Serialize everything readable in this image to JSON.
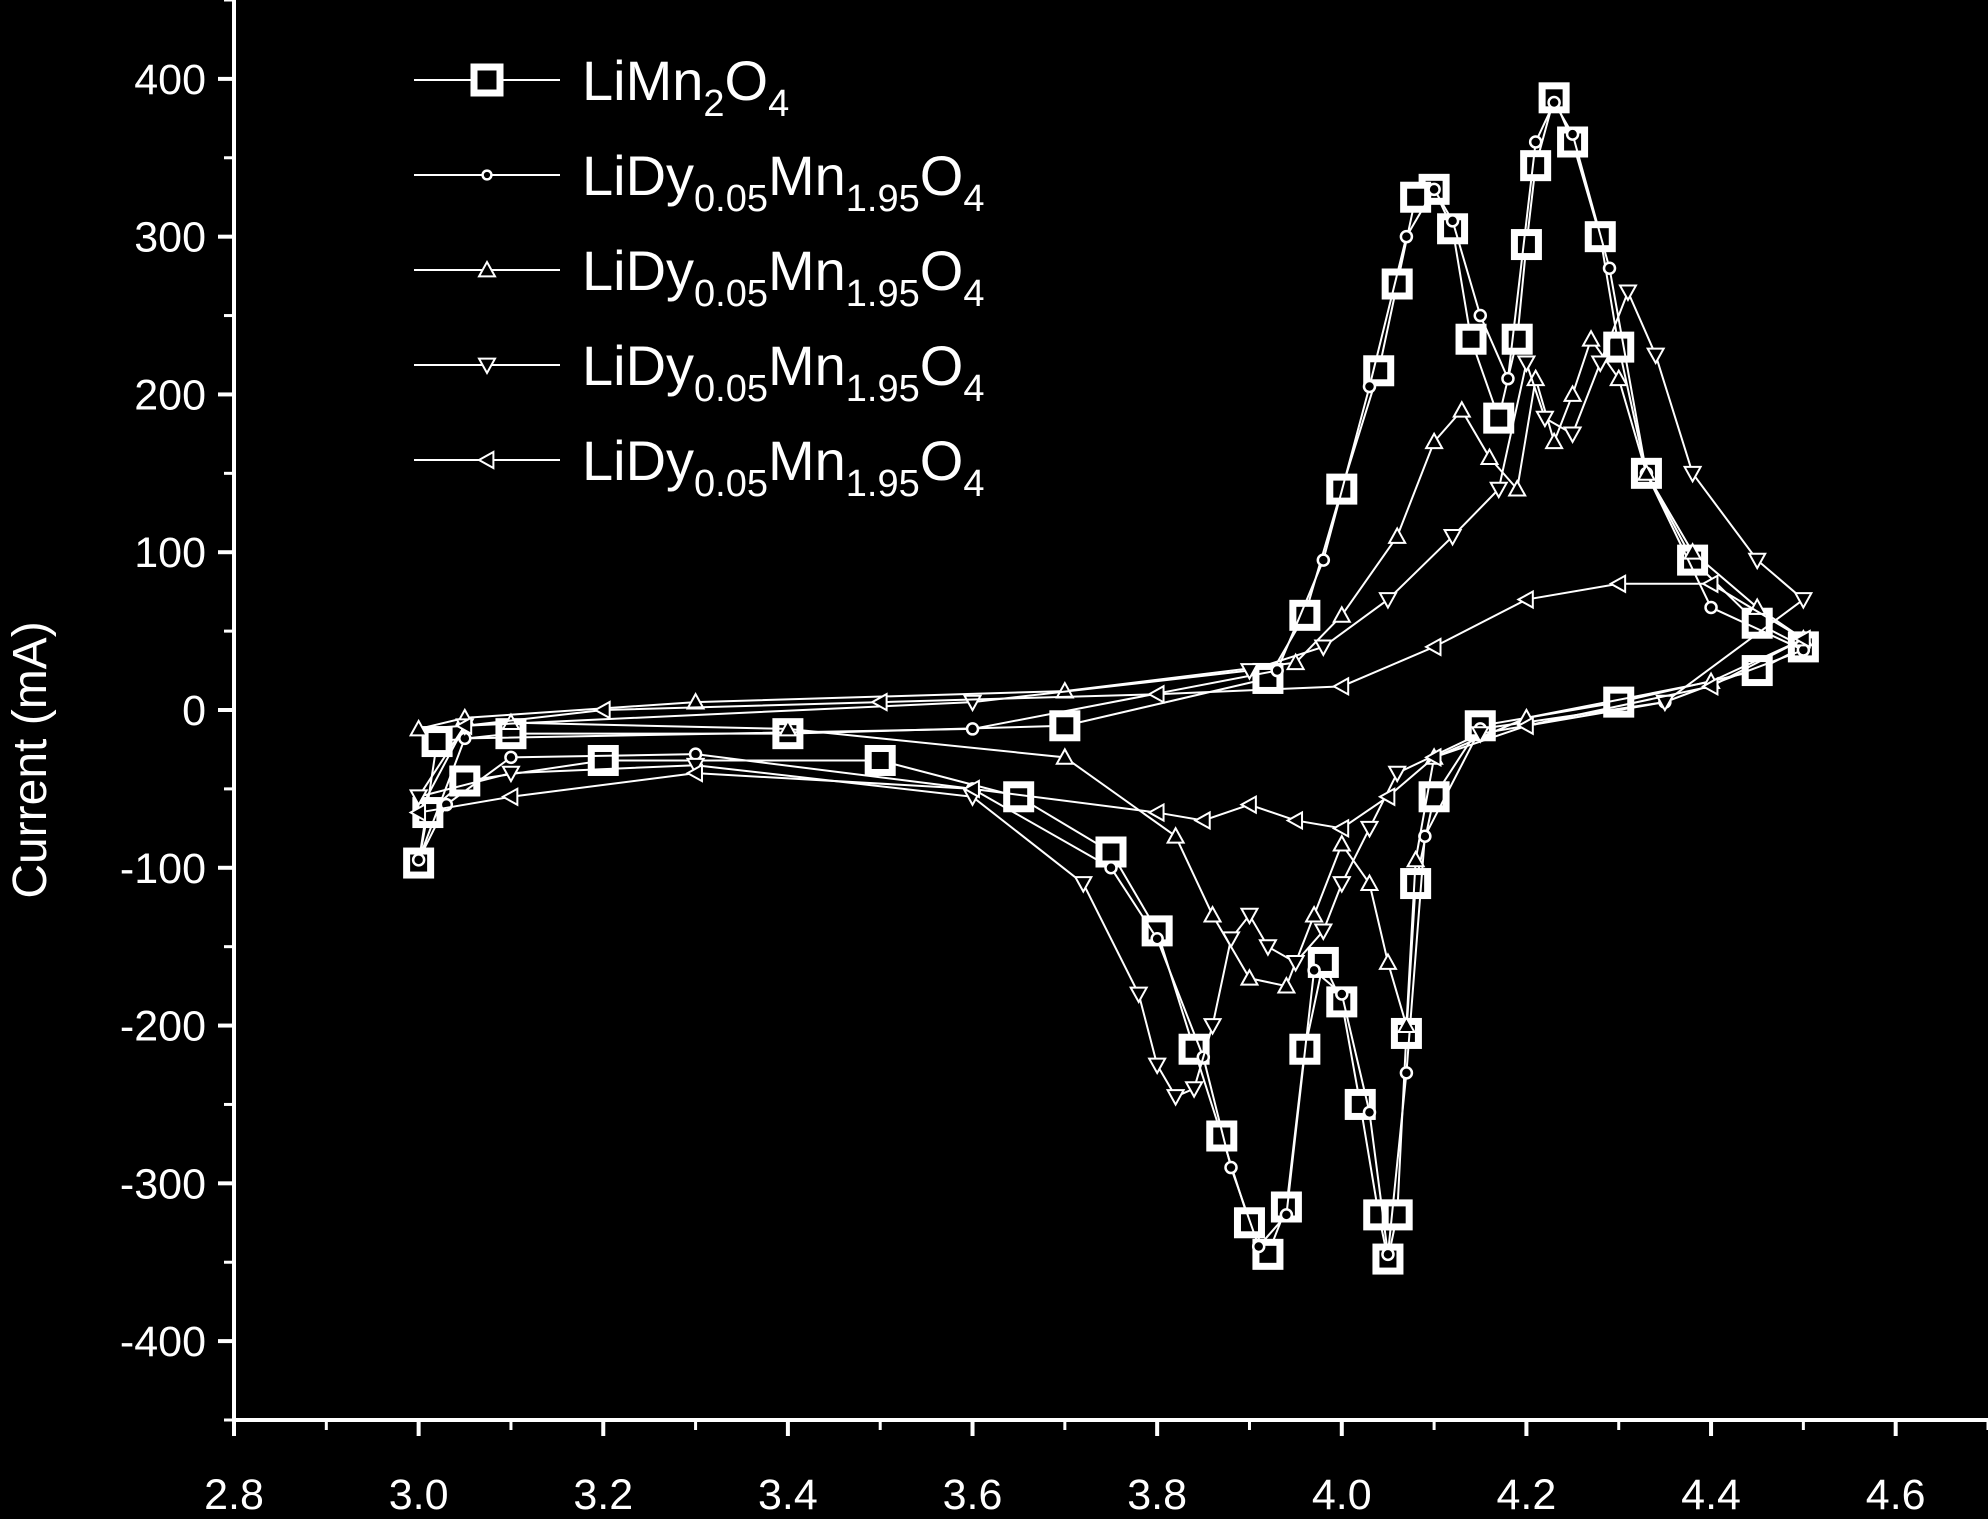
{
  "chart_data": {
    "type": "line",
    "title": "",
    "xlabel": "",
    "ylabel": "Current (mA)",
    "xlim": [
      2.8,
      4.7
    ],
    "ylim": [
      -450,
      450
    ],
    "x_ticks": [
      2.8,
      3.0,
      3.2,
      3.4,
      3.6,
      3.8,
      4.0,
      4.2,
      4.4,
      4.6
    ],
    "x_tick_labels": [
      "2.8",
      "3.0",
      "3.2",
      "3.4",
      "3.6",
      "3.8",
      "4.0",
      "4.2",
      "4.4",
      "4.6"
    ],
    "y_ticks": [
      -400,
      -300,
      -200,
      -100,
      0,
      100,
      200,
      300,
      400
    ],
    "y_tick_labels": [
      "-400",
      "-300",
      "-200",
      "-100",
      "0",
      "100",
      "200",
      "300",
      "400"
    ],
    "legend_position": "top-left",
    "series": [
      {
        "name": "LiMn2O4",
        "legend": {
          "parts": [
            [
              "LiMn",
              "n"
            ],
            [
              "2",
              "s"
            ],
            [
              "O",
              "n"
            ],
            [
              "4",
              "s"
            ]
          ]
        },
        "marker": "square",
        "points": [
          [
            3.0,
            -97
          ],
          [
            3.01,
            -65
          ],
          [
            3.05,
            -45
          ],
          [
            3.2,
            -32
          ],
          [
            3.5,
            -32
          ],
          [
            3.65,
            -55
          ],
          [
            3.75,
            -90
          ],
          [
            3.8,
            -140
          ],
          [
            3.84,
            -215
          ],
          [
            3.87,
            -270
          ],
          [
            3.9,
            -325
          ],
          [
            3.92,
            -345
          ],
          [
            3.94,
            -315
          ],
          [
            3.96,
            -215
          ],
          [
            3.98,
            -160
          ],
          [
            4.0,
            -185
          ],
          [
            4.02,
            -250
          ],
          [
            4.04,
            -320
          ],
          [
            4.05,
            -348
          ],
          [
            4.06,
            -320
          ],
          [
            4.07,
            -205
          ],
          [
            4.08,
            -110
          ],
          [
            4.1,
            -55
          ],
          [
            4.15,
            -10
          ],
          [
            4.3,
            5
          ],
          [
            4.45,
            25
          ],
          [
            4.5,
            40
          ],
          [
            4.45,
            55
          ],
          [
            4.38,
            95
          ],
          [
            4.33,
            150
          ],
          [
            4.3,
            230
          ],
          [
            4.28,
            300
          ],
          [
            4.25,
            360
          ],
          [
            4.23,
            388
          ],
          [
            4.21,
            345
          ],
          [
            4.2,
            295
          ],
          [
            4.19,
            235
          ],
          [
            4.17,
            185
          ],
          [
            4.14,
            235
          ],
          [
            4.12,
            305
          ],
          [
            4.1,
            330
          ],
          [
            4.08,
            325
          ],
          [
            4.06,
            270
          ],
          [
            4.04,
            215
          ],
          [
            4.0,
            140
          ],
          [
            3.96,
            60
          ],
          [
            3.92,
            20
          ],
          [
            3.7,
            -10
          ],
          [
            3.4,
            -15
          ],
          [
            3.1,
            -15
          ],
          [
            3.02,
            -20
          ]
        ]
      },
      {
        "name": "LiDy0.05Mn1.95O4",
        "legend": {
          "parts": [
            [
              "LiDy",
              "n"
            ],
            [
              "0.05",
              "s"
            ],
            [
              "Mn",
              "n"
            ],
            [
              "1.95",
              "s"
            ],
            [
              "O",
              "n"
            ],
            [
              "4",
              "s"
            ]
          ]
        },
        "marker": "circle",
        "points": [
          [
            3.0,
            -95
          ],
          [
            3.03,
            -60
          ],
          [
            3.1,
            -30
          ],
          [
            3.3,
            -28
          ],
          [
            3.6,
            -50
          ],
          [
            3.75,
            -100
          ],
          [
            3.8,
            -145
          ],
          [
            3.85,
            -220
          ],
          [
            3.88,
            -290
          ],
          [
            3.91,
            -340
          ],
          [
            3.94,
            -320
          ],
          [
            3.97,
            -165
          ],
          [
            4.0,
            -180
          ],
          [
            4.03,
            -255
          ],
          [
            4.05,
            -345
          ],
          [
            4.07,
            -230
          ],
          [
            4.09,
            -80
          ],
          [
            4.15,
            -12
          ],
          [
            4.35,
            5
          ],
          [
            4.5,
            38
          ],
          [
            4.4,
            65
          ],
          [
            4.33,
            150
          ],
          [
            4.29,
            280
          ],
          [
            4.25,
            365
          ],
          [
            4.23,
            385
          ],
          [
            4.21,
            360
          ],
          [
            4.18,
            210
          ],
          [
            4.15,
            250
          ],
          [
            4.12,
            310
          ],
          [
            4.1,
            330
          ],
          [
            4.07,
            300
          ],
          [
            4.03,
            205
          ],
          [
            3.98,
            95
          ],
          [
            3.93,
            25
          ],
          [
            3.6,
            -12
          ],
          [
            3.05,
            -18
          ]
        ]
      },
      {
        "name": "LiDy0.05Mn1.95O4",
        "legend": {
          "parts": [
            [
              "LiDy",
              "n"
            ],
            [
              "0.05",
              "s"
            ],
            [
              "Mn",
              "n"
            ],
            [
              "1.95",
              "s"
            ],
            [
              "O",
              "n"
            ],
            [
              "4",
              "s"
            ]
          ]
        },
        "marker": "triangle-up",
        "points": [
          [
            3.0,
            -12
          ],
          [
            3.1,
            -8
          ],
          [
            3.4,
            -12
          ],
          [
            3.7,
            -30
          ],
          [
            3.82,
            -80
          ],
          [
            3.86,
            -130
          ],
          [
            3.9,
            -170
          ],
          [
            3.94,
            -175
          ],
          [
            3.97,
            -130
          ],
          [
            4.0,
            -85
          ],
          [
            4.03,
            -110
          ],
          [
            4.05,
            -160
          ],
          [
            4.07,
            -200
          ],
          [
            4.08,
            -95
          ],
          [
            4.1,
            -30
          ],
          [
            4.2,
            -5
          ],
          [
            4.4,
            18
          ],
          [
            4.5,
            45
          ],
          [
            4.45,
            65
          ],
          [
            4.38,
            100
          ],
          [
            4.33,
            150
          ],
          [
            4.3,
            210
          ],
          [
            4.27,
            235
          ],
          [
            4.25,
            200
          ],
          [
            4.23,
            170
          ],
          [
            4.21,
            210
          ],
          [
            4.19,
            140
          ],
          [
            4.16,
            160
          ],
          [
            4.13,
            190
          ],
          [
            4.1,
            170
          ],
          [
            4.06,
            110
          ],
          [
            4.0,
            60
          ],
          [
            3.95,
            30
          ],
          [
            3.7,
            12
          ],
          [
            3.3,
            5
          ],
          [
            3.05,
            -5
          ]
        ]
      },
      {
        "name": "LiDy0.05Mn1.95O4",
        "legend": {
          "parts": [
            [
              "LiDy",
              "n"
            ],
            [
              "0.05",
              "s"
            ],
            [
              "Mn",
              "n"
            ],
            [
              "1.95",
              "s"
            ],
            [
              "O",
              "n"
            ],
            [
              "4",
              "s"
            ]
          ]
        },
        "marker": "triangle-down",
        "points": [
          [
            3.0,
            -55
          ],
          [
            3.1,
            -40
          ],
          [
            3.3,
            -35
          ],
          [
            3.6,
            -55
          ],
          [
            3.72,
            -110
          ],
          [
            3.78,
            -180
          ],
          [
            3.8,
            -225
          ],
          [
            3.82,
            -245
          ],
          [
            3.84,
            -240
          ],
          [
            3.86,
            -200
          ],
          [
            3.88,
            -145
          ],
          [
            3.9,
            -130
          ],
          [
            3.92,
            -150
          ],
          [
            3.95,
            -160
          ],
          [
            3.98,
            -140
          ],
          [
            4.0,
            -110
          ],
          [
            4.03,
            -75
          ],
          [
            4.06,
            -40
          ],
          [
            4.15,
            -15
          ],
          [
            4.35,
            5
          ],
          [
            4.5,
            70
          ],
          [
            4.45,
            95
          ],
          [
            4.38,
            150
          ],
          [
            4.34,
            225
          ],
          [
            4.31,
            265
          ],
          [
            4.28,
            220
          ],
          [
            4.25,
            175
          ],
          [
            4.22,
            185
          ],
          [
            4.2,
            220
          ],
          [
            4.17,
            140
          ],
          [
            4.12,
            110
          ],
          [
            4.05,
            70
          ],
          [
            3.98,
            40
          ],
          [
            3.9,
            25
          ],
          [
            3.6,
            5
          ],
          [
            3.05,
            -10
          ]
        ]
      },
      {
        "name": "LiDy0.05Mn1.95O4",
        "legend": {
          "parts": [
            [
              "LiDy",
              "n"
            ],
            [
              "0.05",
              "s"
            ],
            [
              "Mn",
              "n"
            ],
            [
              "1.95",
              "s"
            ],
            [
              "O",
              "n"
            ],
            [
              "4",
              "s"
            ]
          ]
        },
        "marker": "triangle-left",
        "points": [
          [
            3.0,
            -65
          ],
          [
            3.1,
            -55
          ],
          [
            3.3,
            -40
          ],
          [
            3.6,
            -50
          ],
          [
            3.8,
            -65
          ],
          [
            3.85,
            -70
          ],
          [
            3.9,
            -60
          ],
          [
            3.95,
            -70
          ],
          [
            4.0,
            -75
          ],
          [
            4.05,
            -55
          ],
          [
            4.1,
            -30
          ],
          [
            4.2,
            -10
          ],
          [
            4.4,
            15
          ],
          [
            4.5,
            45
          ],
          [
            4.4,
            80
          ],
          [
            4.3,
            80
          ],
          [
            4.2,
            70
          ],
          [
            4.1,
            40
          ],
          [
            4.0,
            15
          ],
          [
            3.8,
            10
          ],
          [
            3.5,
            5
          ],
          [
            3.2,
            0
          ],
          [
            3.05,
            -10
          ]
        ]
      }
    ]
  }
}
